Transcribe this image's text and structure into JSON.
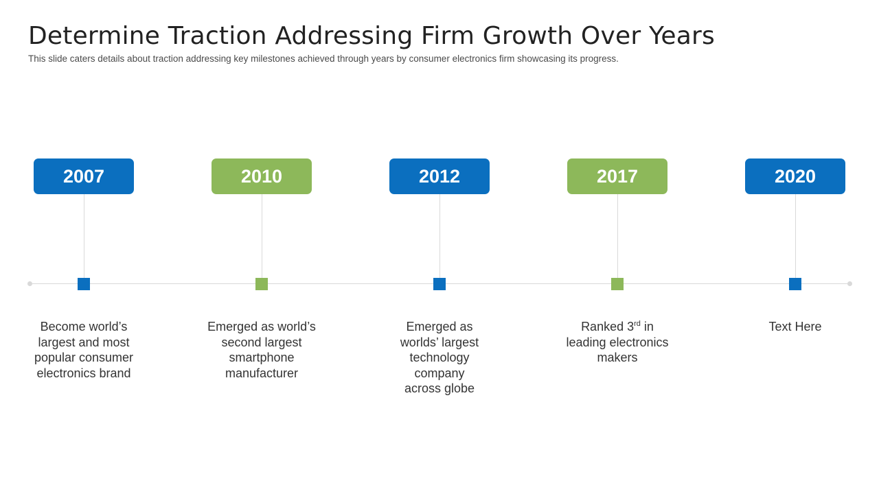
{
  "slide": {
    "title": "Determine Traction Addressing Firm Growth Over Years",
    "subtitle": "This slide caters details about traction addressing key milestones achieved through years by consumer electronics firm showcasing its progress."
  },
  "colors": {
    "blue": "#0B6FBF",
    "green": "#8DB85A",
    "line": "#D9D9D9"
  },
  "milestones": [
    {
      "year": "2007",
      "color": "#0B6FBF",
      "lines": [
        "Become world’s",
        "largest and most",
        "popular consumer",
        "electronics brand"
      ]
    },
    {
      "year": "2010",
      "color": "#8DB85A",
      "lines": [
        "Emerged as world’s",
        "second largest",
        "smartphone",
        "manufacturer"
      ]
    },
    {
      "year": "2012",
      "color": "#0B6FBF",
      "lines": [
        "Emerged as",
        "worlds’ largest",
        "technology",
        "company",
        "across globe"
      ]
    },
    {
      "year": "2017",
      "color": "#8DB85A",
      "pre": "Ranked 3",
      "sup": "rd",
      "post": " in",
      "lines": [
        "leading electronics",
        "makers"
      ]
    },
    {
      "year": "2020",
      "color": "#0B6FBF",
      "lines": [
        "Text Here"
      ]
    }
  ]
}
